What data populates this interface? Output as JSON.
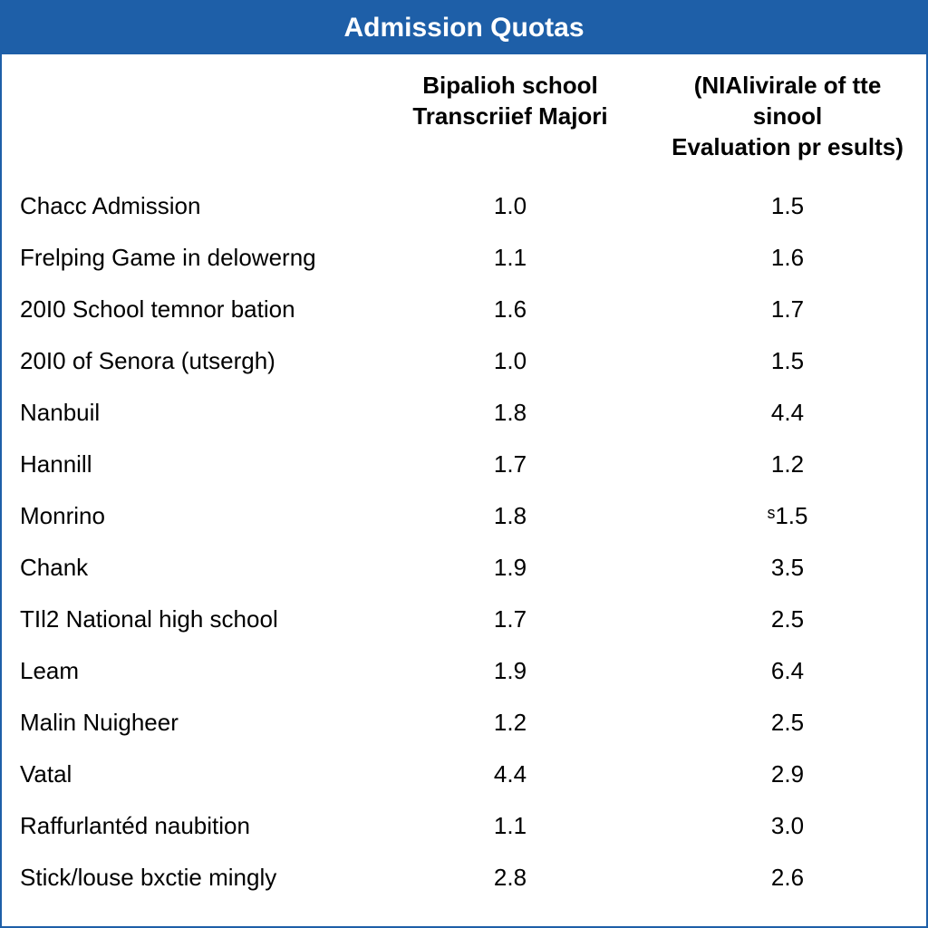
{
  "title": "Admission Quotas",
  "columns": {
    "col1": "",
    "col2_line1": "Bipalioh school",
    "col2_line2": "Transcriief Majori",
    "col3_line1": "(NIAlivirale of tte sinool",
    "col3_line2": "Evaluation pr esults)"
  },
  "rows": [
    {
      "label": "Chacc Admission",
      "v1": "1.0",
      "v2": "1.5"
    },
    {
      "label": "Frelping Game in delowerng",
      "v1": "1.1",
      "v2": "1.6"
    },
    {
      "label": "20I0 School temnor bation",
      "v1": "1.6",
      "v2": "1.7"
    },
    {
      "label": "20I0 of Senora (utsergh)",
      "v1": "1.0",
      "v2": "1.5"
    },
    {
      "label": "Nanbuil",
      "v1": "1.8",
      "v2": "4.4"
    },
    {
      "label": "Hannill",
      "v1": "1.7",
      "v2": "1.2"
    },
    {
      "label": "Monrino",
      "v1": "1.8",
      "v2": "ˢ1.5"
    },
    {
      "label": "Chank",
      "v1": "1.9",
      "v2": "3.5"
    },
    {
      "label": "TIl2 National high school",
      "v1": "1.7",
      "v2": "2.5"
    },
    {
      "label": "Leam",
      "v1": "1.9",
      "v2": "6.4"
    },
    {
      "label": "Malin Nuigheer",
      "v1": "1.2",
      "v2": "2.5"
    },
    {
      "label": "Vatal",
      "v1": "4.4",
      "v2": "2.9"
    },
    {
      "label": "Raffurlantéd naubition",
      "v1": "1.1",
      "v2": "3.0"
    },
    {
      "label": "Stick/louse bxctie mingly",
      "v1": "2.8",
      "v2": "2.6"
    }
  ],
  "styling": {
    "header_bg": "#1e5fa8",
    "header_fg": "#ffffff",
    "border_color": "#1e5fa8",
    "text_color": "#000000",
    "title_fontsize": 30,
    "header_fontsize": 26,
    "body_fontsize": 26,
    "col_widths": [
      "40%",
      "30%",
      "30%"
    ]
  }
}
